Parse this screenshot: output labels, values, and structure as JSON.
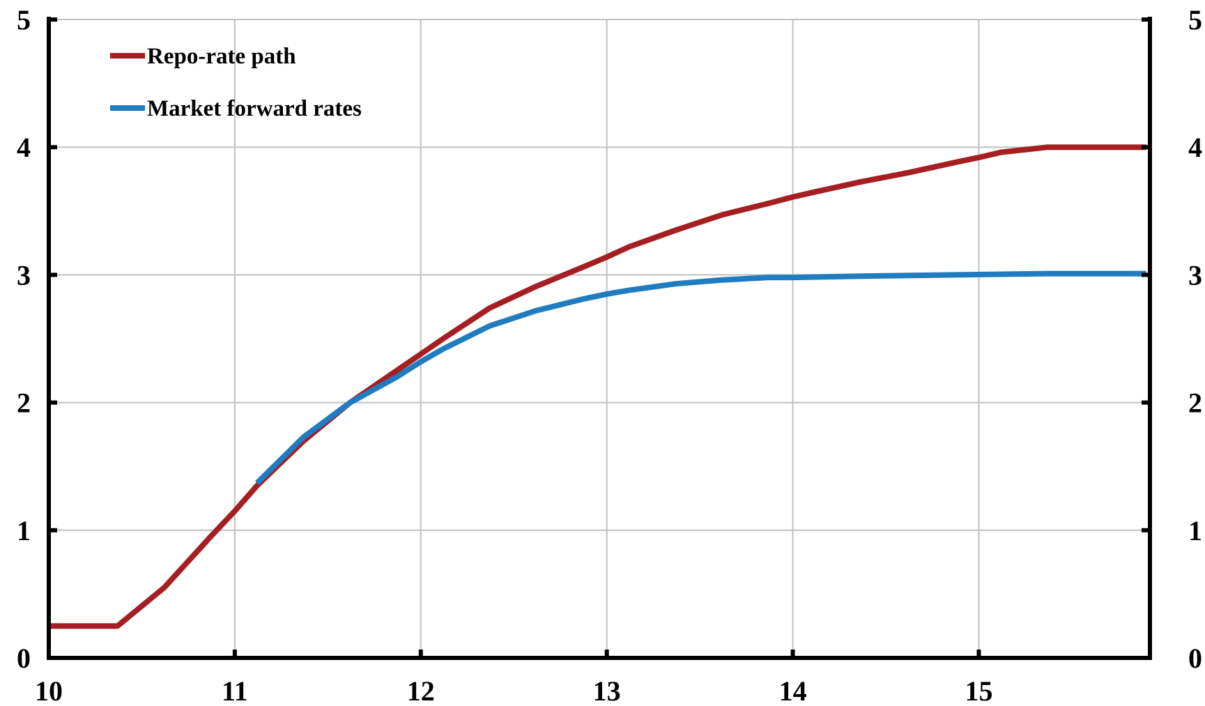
{
  "chart_data": {
    "type": "line",
    "title": "",
    "xlabel": "",
    "ylabel": "",
    "xlim": [
      10,
      15.92
    ],
    "ylim": [
      0,
      5
    ],
    "x_ticks": [
      "10",
      "11",
      "12",
      "13",
      "14",
      "15"
    ],
    "y_ticks": [
      "0",
      "1",
      "2",
      "3",
      "4",
      "5"
    ],
    "y_ticks_right": [
      "0",
      "1",
      "2",
      "3",
      "4",
      "5"
    ],
    "grid": true,
    "legend_position": "top-left",
    "series": [
      {
        "name": "Repo-rate path",
        "color": "#a51e22",
        "points": [
          [
            10.0,
            0.25
          ],
          [
            10.37,
            0.25
          ],
          [
            10.62,
            0.55
          ],
          [
            10.87,
            0.95
          ],
          [
            11.0,
            1.15
          ],
          [
            11.12,
            1.35
          ],
          [
            11.37,
            1.7
          ],
          [
            11.62,
            2.0
          ],
          [
            11.87,
            2.25
          ],
          [
            12.0,
            2.38
          ],
          [
            12.12,
            2.5
          ],
          [
            12.37,
            2.74
          ],
          [
            12.62,
            2.91
          ],
          [
            12.87,
            3.06
          ],
          [
            13.0,
            3.14
          ],
          [
            13.12,
            3.22
          ],
          [
            13.37,
            3.35
          ],
          [
            13.62,
            3.47
          ],
          [
            13.87,
            3.56
          ],
          [
            14.0,
            3.61
          ],
          [
            14.12,
            3.65
          ],
          [
            14.37,
            3.73
          ],
          [
            14.62,
            3.8
          ],
          [
            14.87,
            3.88
          ],
          [
            15.0,
            3.92
          ],
          [
            15.12,
            3.96
          ],
          [
            15.37,
            4.0
          ],
          [
            15.62,
            4.0
          ],
          [
            15.9,
            4.0
          ]
        ]
      },
      {
        "name": "Market forward rates",
        "color": "#1f7cc0",
        "points": [
          [
            11.12,
            1.37
          ],
          [
            11.37,
            1.73
          ],
          [
            11.62,
            2.0
          ],
          [
            11.87,
            2.2
          ],
          [
            12.0,
            2.32
          ],
          [
            12.12,
            2.42
          ],
          [
            12.37,
            2.6
          ],
          [
            12.62,
            2.72
          ],
          [
            12.87,
            2.81
          ],
          [
            13.0,
            2.85
          ],
          [
            13.12,
            2.88
          ],
          [
            13.37,
            2.93
          ],
          [
            13.62,
            2.96
          ],
          [
            13.87,
            2.98
          ],
          [
            14.0,
            2.98
          ],
          [
            14.37,
            2.99
          ],
          [
            14.87,
            3.0
          ],
          [
            15.37,
            3.01
          ],
          [
            15.9,
            3.01
          ]
        ]
      }
    ]
  }
}
